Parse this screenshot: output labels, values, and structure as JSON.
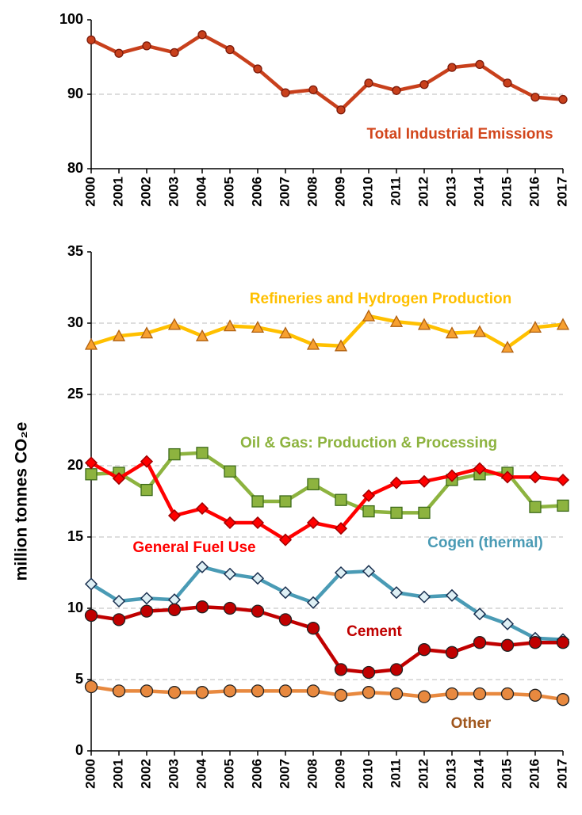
{
  "chart_data": [
    {
      "type": "line",
      "categories": [
        "2000",
        "2001",
        "2002",
        "2003",
        "2004",
        "2005",
        "2006",
        "2007",
        "2008",
        "2009",
        "2010",
        "2011",
        "2012",
        "2013",
        "2014",
        "2015",
        "2016",
        "2017"
      ],
      "ylim": [
        80,
        100
      ],
      "yticks": [
        80,
        90,
        100
      ],
      "grid": true,
      "series": [
        {
          "name": "Total Industrial Emissions",
          "color": "#c8401c",
          "marker": "circle",
          "values": [
            97.3,
            95.5,
            96.5,
            95.6,
            98.0,
            96.0,
            93.4,
            90.2,
            90.6,
            87.9,
            91.5,
            90.5,
            91.3,
            93.6,
            94.0,
            91.5,
            89.6,
            89.3
          ]
        }
      ]
    },
    {
      "type": "line",
      "ylabel": "million tonnes CO₂e",
      "categories": [
        "2000",
        "2001",
        "2002",
        "2003",
        "2004",
        "2005",
        "2006",
        "2007",
        "2008",
        "2009",
        "2010",
        "2011",
        "2012",
        "2013",
        "2014",
        "2015",
        "2016",
        "2017"
      ],
      "ylim": [
        0,
        35
      ],
      "yticks": [
        0,
        5,
        10,
        15,
        20,
        25,
        30,
        35
      ],
      "grid": true,
      "series": [
        {
          "name": "Refineries and Hydrogen Production",
          "color": "#ffc000",
          "marker": "triangle",
          "values": [
            28.5,
            29.1,
            29.3,
            29.9,
            29.1,
            29.8,
            29.7,
            29.3,
            28.5,
            28.4,
            30.5,
            30.1,
            29.9,
            29.3,
            29.4,
            28.3,
            29.7,
            29.9
          ]
        },
        {
          "name": "Oil & Gas: Production & Processing",
          "color": "#8db33f",
          "marker": "square",
          "values": [
            19.4,
            19.5,
            18.3,
            20.8,
            20.9,
            19.6,
            17.5,
            17.5,
            18.7,
            17.6,
            16.8,
            16.7,
            16.7,
            19.0,
            19.4,
            19.5,
            17.1,
            17.2
          ]
        },
        {
          "name": "General Fuel Use",
          "color": "#ff0000",
          "marker": "diamond",
          "values": [
            20.2,
            19.1,
            20.3,
            16.5,
            17.0,
            16.0,
            16.0,
            14.8,
            16.0,
            15.6,
            17.9,
            18.8,
            18.9,
            19.3,
            19.8,
            19.2,
            19.2,
            19.0
          ]
        },
        {
          "name": "Cogen (thermal)",
          "color": "#4a9bb5",
          "marker": "diamond",
          "values": [
            11.7,
            10.5,
            10.7,
            10.6,
            12.9,
            12.4,
            12.1,
            11.1,
            10.4,
            12.5,
            12.6,
            11.1,
            10.8,
            10.9,
            9.6,
            8.9,
            7.9,
            7.8
          ]
        },
        {
          "name": "Cement",
          "color": "#c00000",
          "marker": "circle",
          "values": [
            9.5,
            9.2,
            9.8,
            9.9,
            10.1,
            10.0,
            9.8,
            9.2,
            8.6,
            5.7,
            5.5,
            5.7,
            7.1,
            6.9,
            7.6,
            7.4,
            7.6,
            7.6
          ]
        },
        {
          "name": "Other",
          "color": "#e8893f",
          "marker": "circle",
          "values": [
            4.5,
            4.2,
            4.2,
            4.1,
            4.1,
            4.2,
            4.2,
            4.2,
            4.2,
            3.9,
            4.1,
            4.0,
            3.8,
            4.0,
            4.0,
            4.0,
            3.9,
            3.6
          ]
        }
      ]
    }
  ]
}
